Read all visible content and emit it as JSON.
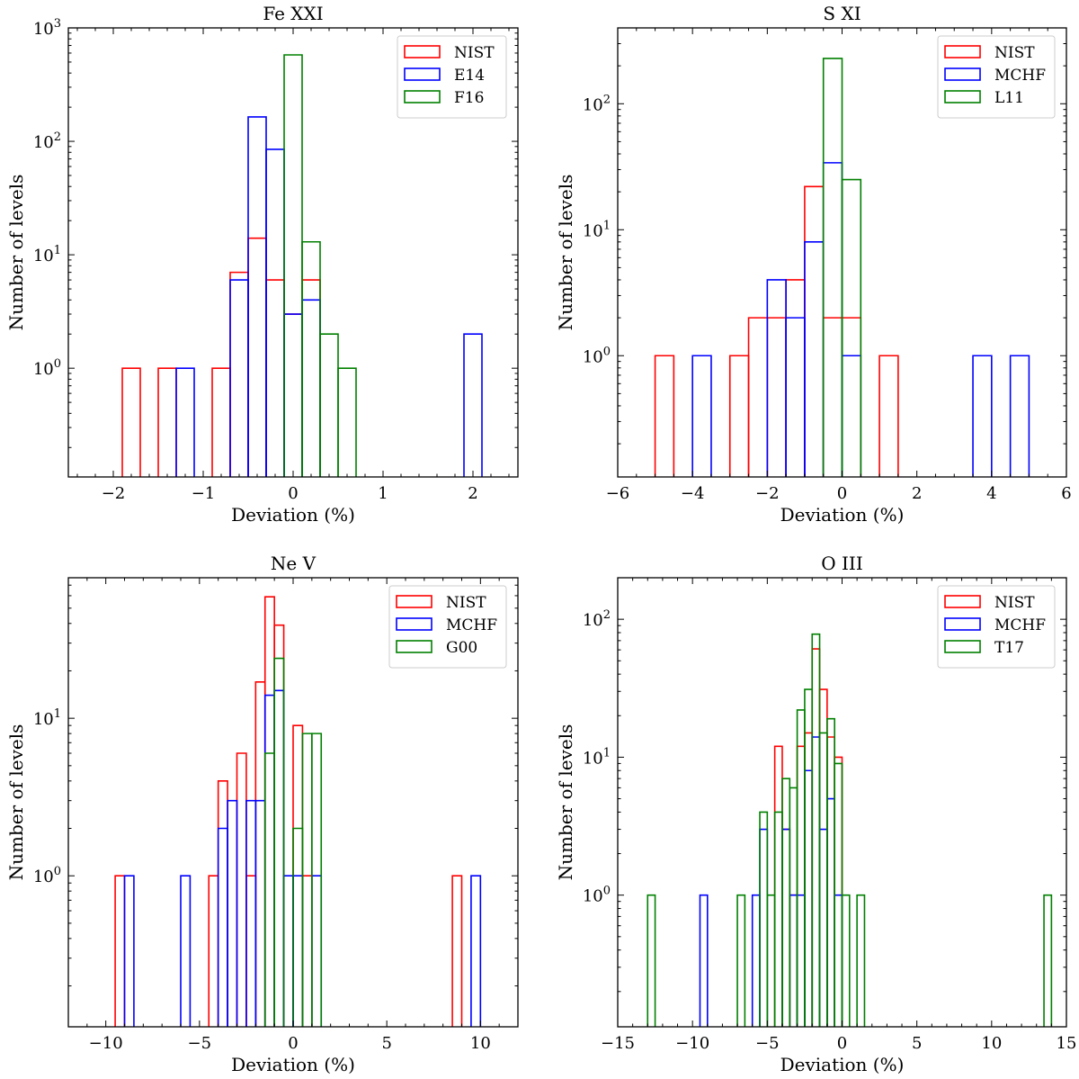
{
  "figure": {
    "type": "step-histogram grid",
    "layout": "2x2"
  },
  "chart_data": [
    {
      "type": "bar",
      "style": "step histogram",
      "title": "Fe XXI",
      "xlabel": "Deviation (%)",
      "ylabel": "Number of levels",
      "yscale": "log",
      "xlim": [
        -2.5,
        2.5
      ],
      "ylim": [
        0.11,
        1000
      ],
      "xticks": [
        -2,
        -1,
        0,
        1,
        2
      ],
      "xtick_labels": [
        "−2",
        "−1",
        "0",
        "1",
        "2"
      ],
      "x_minor_step": 0.2,
      "yticks": [
        1,
        10,
        100,
        1000
      ],
      "ytick_labels": [
        [
          "10",
          "0"
        ],
        [
          "10",
          "1"
        ],
        [
          "10",
          "2"
        ],
        [
          "10",
          "3"
        ]
      ],
      "legend": "top-right",
      "series": [
        {
          "name": "NIST",
          "color": "#ff0000",
          "bins": [
            [
              -1.9,
              -1.7,
              1
            ],
            [
              -1.5,
              -1.3,
              1
            ],
            [
              -0.9,
              -0.7,
              1
            ],
            [
              -0.7,
              -0.5,
              7
            ],
            [
              -0.5,
              -0.3,
              14
            ],
            [
              -0.3,
              -0.1,
              6
            ],
            [
              -0.1,
              0.1,
              3
            ],
            [
              0.1,
              0.3,
              6
            ]
          ]
        },
        {
          "name": "E14",
          "color": "#0000ff",
          "bins": [
            [
              -1.3,
              -1.1,
              1
            ],
            [
              -0.7,
              -0.5,
              6
            ],
            [
              -0.5,
              -0.3,
              164
            ],
            [
              -0.3,
              -0.1,
              85
            ],
            [
              -0.1,
              0.1,
              3
            ],
            [
              0.1,
              0.3,
              4
            ],
            [
              1.9,
              2.1,
              2
            ]
          ]
        },
        {
          "name": "F16",
          "color": "#008000",
          "bins": [
            [
              -0.1,
              0.1,
              578
            ],
            [
              0.1,
              0.3,
              13
            ],
            [
              0.3,
              0.5,
              2
            ],
            [
              0.5,
              0.7,
              1
            ]
          ]
        }
      ]
    },
    {
      "type": "bar",
      "style": "step histogram",
      "title": "S XI",
      "xlabel": "Deviation (%)",
      "ylabel": "Number of levels",
      "yscale": "log",
      "xlim": [
        -6,
        6
      ],
      "ylim": [
        0.109,
        400
      ],
      "xticks": [
        -6,
        -4,
        -2,
        0,
        2,
        4,
        6
      ],
      "xtick_labels": [
        "−6",
        "−4",
        "−2",
        "0",
        "2",
        "4",
        "6"
      ],
      "x_minor_step": 0.5,
      "yticks": [
        1,
        10,
        100
      ],
      "ytick_labels": [
        [
          "10",
          "0"
        ],
        [
          "10",
          "1"
        ],
        [
          "10",
          "2"
        ]
      ],
      "legend": "top-right",
      "series": [
        {
          "name": "NIST",
          "color": "#ff0000",
          "bins": [
            [
              -5,
              -4.5,
              1
            ],
            [
              -3,
              -2.5,
              1
            ],
            [
              -2.5,
              -2,
              2
            ],
            [
              -2,
              -1.5,
              2
            ],
            [
              -1.5,
              -1,
              4
            ],
            [
              -1,
              -0.5,
              22
            ],
            [
              -0.5,
              0,
              2
            ],
            [
              0,
              0.5,
              2
            ],
            [
              1,
              1.5,
              1
            ]
          ]
        },
        {
          "name": "MCHF",
          "color": "#0000ff",
          "bins": [
            [
              -4,
              -3.5,
              1
            ],
            [
              -2,
              -1.5,
              4
            ],
            [
              -1.5,
              -1,
              2
            ],
            [
              -1,
              -0.5,
              8
            ],
            [
              -0.5,
              0,
              34
            ],
            [
              0,
              0.5,
              1
            ],
            [
              3.5,
              4,
              1
            ],
            [
              4.5,
              5,
              1
            ]
          ]
        },
        {
          "name": "L11",
          "color": "#008000",
          "bins": [
            [
              -0.5,
              0,
              229
            ],
            [
              0,
              0.5,
              25
            ]
          ]
        }
      ]
    },
    {
      "type": "bar",
      "style": "step histogram",
      "title": "Ne V",
      "xlabel": "Deviation (%)",
      "ylabel": "Number of levels",
      "yscale": "log",
      "xlim": [
        -12,
        12
      ],
      "ylim": [
        0.11,
        78
      ],
      "xticks": [
        -10,
        -5,
        0,
        5,
        10
      ],
      "xtick_labels": [
        "−10",
        "−5",
        "0",
        "5",
        "10"
      ],
      "x_minor_step": 1,
      "yticks": [
        1,
        10
      ],
      "ytick_labels": [
        [
          "10",
          "0"
        ],
        [
          "10",
          "1"
        ]
      ],
      "legend": "top-right",
      "series": [
        {
          "name": "NIST",
          "color": "#ff0000",
          "bins": [
            [
              -9.5,
              -9,
              1
            ],
            [
              -4.5,
              -4,
              1
            ],
            [
              -4,
              -3.5,
              4
            ],
            [
              -3,
              -2.5,
              6
            ],
            [
              -2.5,
              -2,
              1
            ],
            [
              -2,
              -1.5,
              17
            ],
            [
              -1.5,
              -1,
              59
            ],
            [
              -1,
              -0.5,
              39
            ],
            [
              0,
              0.5,
              9
            ],
            [
              0.5,
              1,
              1
            ],
            [
              8.5,
              9,
              1
            ]
          ]
        },
        {
          "name": "MCHF",
          "color": "#0000ff",
          "bins": [
            [
              -9,
              -8.5,
              1
            ],
            [
              -6,
              -5.5,
              1
            ],
            [
              -4,
              -3.5,
              2
            ],
            [
              -3.5,
              -3,
              3
            ],
            [
              -2.5,
              -2,
              3
            ],
            [
              -2,
              -1.5,
              3
            ],
            [
              -1.5,
              -1,
              14
            ],
            [
              -1,
              -0.5,
              15
            ],
            [
              -0.5,
              0,
              1
            ],
            [
              0,
              0.5,
              1
            ],
            [
              1,
              1.5,
              1
            ],
            [
              9.5,
              10,
              1
            ]
          ]
        },
        {
          "name": "G00",
          "color": "#008000",
          "bins": [
            [
              -1.5,
              -1,
              6
            ],
            [
              -1,
              -0.5,
              24
            ],
            [
              0,
              0.5,
              2
            ],
            [
              0.5,
              1,
              8
            ],
            [
              1,
              1.5,
              8
            ]
          ]
        }
      ]
    },
    {
      "type": "bar",
      "style": "step histogram",
      "title": "O III",
      "xlabel": "Deviation (%)",
      "ylabel": "Number of levels",
      "yscale": "log",
      "xlim": [
        -15,
        15
      ],
      "ylim": [
        0.111,
        200
      ],
      "xticks": [
        -15,
        -10,
        -5,
        0,
        5,
        10,
        15
      ],
      "xtick_labels": [
        "−15",
        "−10",
        "−5",
        "0",
        "5",
        "10",
        "15"
      ],
      "x_minor_step": 1,
      "yticks": [
        1,
        10,
        100
      ],
      "ytick_labels": [
        [
          "10",
          "0"
        ],
        [
          "10",
          "1"
        ],
        [
          "10",
          "2"
        ]
      ],
      "legend": "top-right",
      "series": [
        {
          "name": "NIST",
          "color": "#ff0000",
          "bins": [
            [
              -4.5,
              -4,
              12
            ],
            [
              -4,
              -3.5,
              3
            ],
            [
              -3.5,
              -3,
              1
            ],
            [
              -3,
              -2.5,
              12
            ],
            [
              -2.5,
              -2,
              15
            ],
            [
              -2,
              -1.5,
              61
            ],
            [
              -1.5,
              -1,
              31
            ],
            [
              -1,
              -0.5,
              14
            ],
            [
              -0.5,
              0,
              10
            ]
          ]
        },
        {
          "name": "MCHF",
          "color": "#0000ff",
          "bins": [
            [
              -9.5,
              -9,
              1
            ],
            [
              -6,
              -5.5,
              1
            ],
            [
              -5.5,
              -5,
              3
            ],
            [
              -4,
              -3.5,
              3
            ],
            [
              -3.5,
              -3,
              1
            ],
            [
              -3,
              -2.5,
              1
            ],
            [
              -2.5,
              -2,
              8
            ],
            [
              -2,
              -1.5,
              14
            ],
            [
              -1.5,
              -1,
              3
            ],
            [
              -1,
              -0.5,
              5
            ],
            [
              -0.5,
              0,
              1
            ]
          ]
        },
        {
          "name": "T17",
          "color": "#008000",
          "bins": [
            [
              -13,
              -12.5,
              1
            ],
            [
              -7,
              -6.5,
              1
            ],
            [
              -5.5,
              -5,
              4
            ],
            [
              -5,
              -4.5,
              1
            ],
            [
              -4.5,
              -4,
              4
            ],
            [
              -4,
              -3.5,
              7
            ],
            [
              -3.5,
              -3,
              6
            ],
            [
              -3,
              -2.5,
              22
            ],
            [
              -2.5,
              -2,
              31
            ],
            [
              -2,
              -1.5,
              78
            ],
            [
              -1.5,
              -1,
              15
            ],
            [
              -1,
              -0.5,
              19
            ],
            [
              -0.5,
              0,
              9
            ],
            [
              0,
              0.5,
              1
            ],
            [
              1,
              1.5,
              1
            ],
            [
              13.5,
              14,
              1
            ]
          ]
        }
      ]
    }
  ]
}
